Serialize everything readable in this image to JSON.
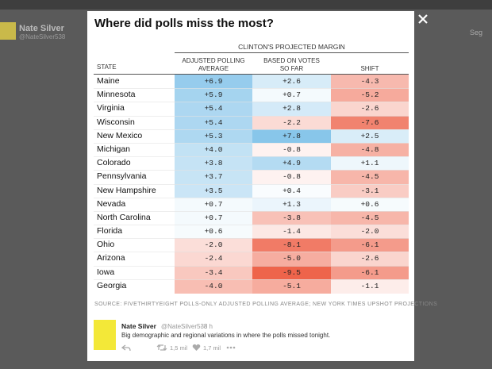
{
  "background": {
    "name": "Nate Silver",
    "handle": "@NateSilver538",
    "follow_label": "Seg"
  },
  "table": {
    "title": "Where did polls miss the most?",
    "group_header": "CLINTON'S PROJECTED MARGIN",
    "columns": [
      "STATE",
      "ADJUSTED POLLING AVERAGE",
      "BASED ON VOTES SO FAR",
      "SHIFT"
    ],
    "rows": [
      [
        "Maine",
        "+6.9",
        "+2.6",
        "-4.3"
      ],
      [
        "Minnesota",
        "+5.9",
        "+0.7",
        "-5.2"
      ],
      [
        "Virginia",
        "+5.4",
        "+2.8",
        "-2.6"
      ],
      [
        "Wisconsin",
        "+5.4",
        "-2.2",
        "-7.6"
      ],
      [
        "New Mexico",
        "+5.3",
        "+7.8",
        "+2.5"
      ],
      [
        "Michigan",
        "+4.0",
        "-0.8",
        "-4.8"
      ],
      [
        "Colorado",
        "+3.8",
        "+4.9",
        "+1.1"
      ],
      [
        "Pennsylvania",
        "+3.7",
        "-0.8",
        "-4.5"
      ],
      [
        "New Hampshire",
        "+3.5",
        "+0.4",
        "-3.1"
      ],
      [
        "Nevada",
        "+0.7",
        "+1.3",
        "+0.6"
      ],
      [
        "North Carolina",
        "+0.7",
        "-3.8",
        "-4.5"
      ],
      [
        "Florida",
        "+0.6",
        "-1.4",
        "-2.0"
      ],
      [
        "Ohio",
        "-2.0",
        "-8.1",
        "-6.1"
      ],
      [
        "Arizona",
        "-2.4",
        "-5.0",
        "-2.6"
      ],
      [
        "Iowa",
        "-3.4",
        "-9.5",
        "-6.1"
      ],
      [
        "Georgia",
        "-4.0",
        "-5.1",
        "-1.1"
      ]
    ],
    "source": "SOURCE: FIVETHIRTYEIGHT POLLS-ONLY ADJUSTED POLLING AVERAGE; NEW YORK TIMES UPSHOT PROJECTIONS"
  },
  "tweet": {
    "name": "Nate Silver",
    "handle": "@NateSilver538",
    "time": "· 8 h",
    "text": "Big demographic and regional variations in where the polls missed tonight.",
    "retweets": "1,5 mil",
    "likes": "1,7 mil"
  }
}
